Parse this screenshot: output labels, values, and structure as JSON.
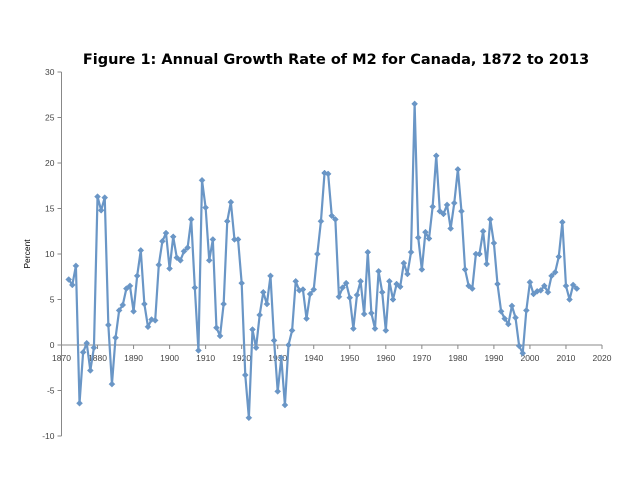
{
  "chart_data": {
    "type": "line",
    "title": "Figure 1: Annual Growth Rate of M2 for Canada, 1872 to 2013",
    "xlabel": "",
    "ylabel": "Percent",
    "xlim": [
      1870,
      2020
    ],
    "ylim": [
      -10,
      30
    ],
    "x_ticks": [
      1870,
      1880,
      1890,
      1900,
      1910,
      1920,
      1930,
      1940,
      1950,
      1960,
      1970,
      1980,
      1990,
      2000,
      2010,
      2020
    ],
    "y_ticks": [
      -10,
      -5,
      0,
      5,
      10,
      15,
      20,
      25,
      30
    ],
    "grid": false,
    "legend": "none",
    "colors": {
      "series": "#6a96c6",
      "axis": "#888888",
      "text": "#000000"
    },
    "series": [
      {
        "name": "M2 growth rate",
        "x": [
          1872,
          1873,
          1874,
          1875,
          1876,
          1877,
          1878,
          1879,
          1880,
          1881,
          1882,
          1883,
          1884,
          1885,
          1886,
          1887,
          1888,
          1889,
          1890,
          1891,
          1892,
          1893,
          1894,
          1895,
          1896,
          1897,
          1898,
          1899,
          1900,
          1901,
          1902,
          1903,
          1904,
          1905,
          1906,
          1907,
          1908,
          1909,
          1910,
          1911,
          1912,
          1913,
          1914,
          1915,
          1916,
          1917,
          1918,
          1919,
          1920,
          1921,
          1922,
          1923,
          1924,
          1925,
          1926,
          1927,
          1928,
          1929,
          1930,
          1931,
          1932,
          1933,
          1934,
          1935,
          1936,
          1937,
          1938,
          1939,
          1940,
          1941,
          1942,
          1943,
          1944,
          1945,
          1946,
          1947,
          1948,
          1949,
          1950,
          1951,
          1952,
          1953,
          1954,
          1955,
          1956,
          1957,
          1958,
          1959,
          1960,
          1961,
          1962,
          1963,
          1964,
          1965,
          1966,
          1967,
          1968,
          1969,
          1970,
          1971,
          1972,
          1973,
          1974,
          1975,
          1976,
          1977,
          1978,
          1979,
          1980,
          1981,
          1982,
          1983,
          1984,
          1985,
          1986,
          1987,
          1988,
          1989,
          1990,
          1991,
          1992,
          1993,
          1994,
          1995,
          1996,
          1997,
          1998,
          1999,
          2000,
          2001,
          2002,
          2003,
          2004,
          2005,
          2006,
          2007,
          2008,
          2009,
          2010,
          2011,
          2012,
          2013
        ],
        "values": [
          7.2,
          6.6,
          8.7,
          -6.4,
          -0.8,
          0.2,
          -2.8,
          -0.3,
          16.3,
          14.8,
          16.2,
          2.2,
          -4.3,
          0.8,
          3.8,
          4.4,
          6.2,
          6.5,
          3.7,
          7.6,
          10.4,
          4.5,
          2.0,
          2.8,
          2.7,
          8.8,
          11.4,
          12.3,
          8.4,
          11.9,
          9.6,
          9.3,
          10.3,
          10.7,
          13.8,
          6.3,
          -0.6,
          18.1,
          15.1,
          9.3,
          11.6,
          1.9,
          1.0,
          4.5,
          13.6,
          15.7,
          11.6,
          11.6,
          6.8,
          -3.3,
          -8.0,
          1.7,
          -0.3,
          3.3,
          5.8,
          4.5,
          7.6,
          0.5,
          -5.1,
          -1.4,
          -6.6,
          0.0,
          1.6,
          7.0,
          6.0,
          6.1,
          2.9,
          5.6,
          6.1,
          10.0,
          13.6,
          18.9,
          18.8,
          14.2,
          13.8,
          5.3,
          6.3,
          6.8,
          5.2,
          1.8,
          5.5,
          7.0,
          3.4,
          10.2,
          3.5,
          1.8,
          8.1,
          5.8,
          1.6,
          7.0,
          5.0,
          6.7,
          6.4,
          9.0,
          7.8,
          10.2,
          26.5,
          11.8,
          8.3,
          12.4,
          11.7,
          15.2,
          20.8,
          14.7,
          14.4,
          15.4,
          12.8,
          15.6,
          19.3,
          14.7,
          8.3,
          6.5,
          6.2,
          10.0,
          10.0,
          12.5,
          8.9,
          13.8,
          11.2,
          6.7,
          3.7,
          2.9,
          2.3,
          4.3,
          3.0,
          -0.1,
          -0.9,
          3.8,
          6.9,
          5.6,
          5.9,
          6.0,
          6.5,
          5.8,
          7.6,
          8.0,
          9.7,
          13.5,
          6.5,
          5.0,
          6.6,
          6.2
        ]
      }
    ]
  }
}
